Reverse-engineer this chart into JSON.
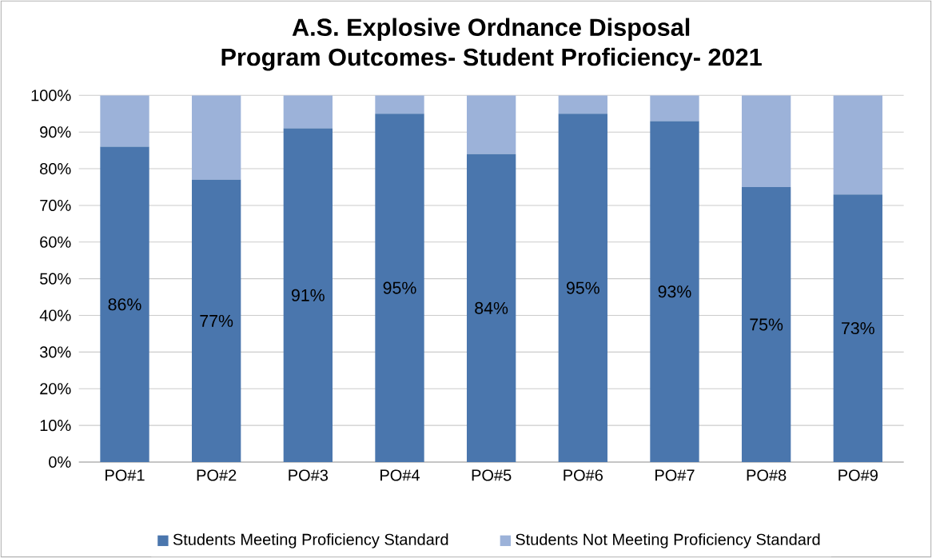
{
  "chart_data": {
    "type": "bar",
    "stacked": true,
    "title": "A.S. Explosive Ordnance Disposal\nProgram Outcomes- Student Proficiency- 2021",
    "categories": [
      "PO#1",
      "PO#2",
      "PO#3",
      "PO#4",
      "PO#5",
      "PO#6",
      "PO#7",
      "PO#8",
      "PO#9"
    ],
    "series": [
      {
        "name": "Students Meeting Proficiency Standard",
        "color": "#4a76ad",
        "values": [
          86,
          77,
          91,
          95,
          84,
          95,
          93,
          75,
          73
        ],
        "value_labels": [
          "86%",
          "77%",
          "91%",
          "95%",
          "84%",
          "95%",
          "93%",
          "75%",
          "73%"
        ]
      },
      {
        "name": "Students Not Meeting Proficiency Standard",
        "color": "#9cb2d9",
        "values": [
          14,
          23,
          9,
          5,
          16,
          5,
          7,
          25,
          27
        ]
      }
    ],
    "ylim": [
      0,
      100
    ],
    "yticks": [
      {
        "value": 0,
        "label": "0%"
      },
      {
        "value": 10,
        "label": "10%"
      },
      {
        "value": 20,
        "label": "20%"
      },
      {
        "value": 30,
        "label": "30%"
      },
      {
        "value": 40,
        "label": "40%"
      },
      {
        "value": 50,
        "label": "50%"
      },
      {
        "value": 60,
        "label": "60%"
      },
      {
        "value": 70,
        "label": "70%"
      },
      {
        "value": 80,
        "label": "80%"
      },
      {
        "value": 90,
        "label": "90%"
      },
      {
        "value": 100,
        "label": "100%"
      }
    ],
    "grid": "y",
    "legend": "bottom"
  }
}
